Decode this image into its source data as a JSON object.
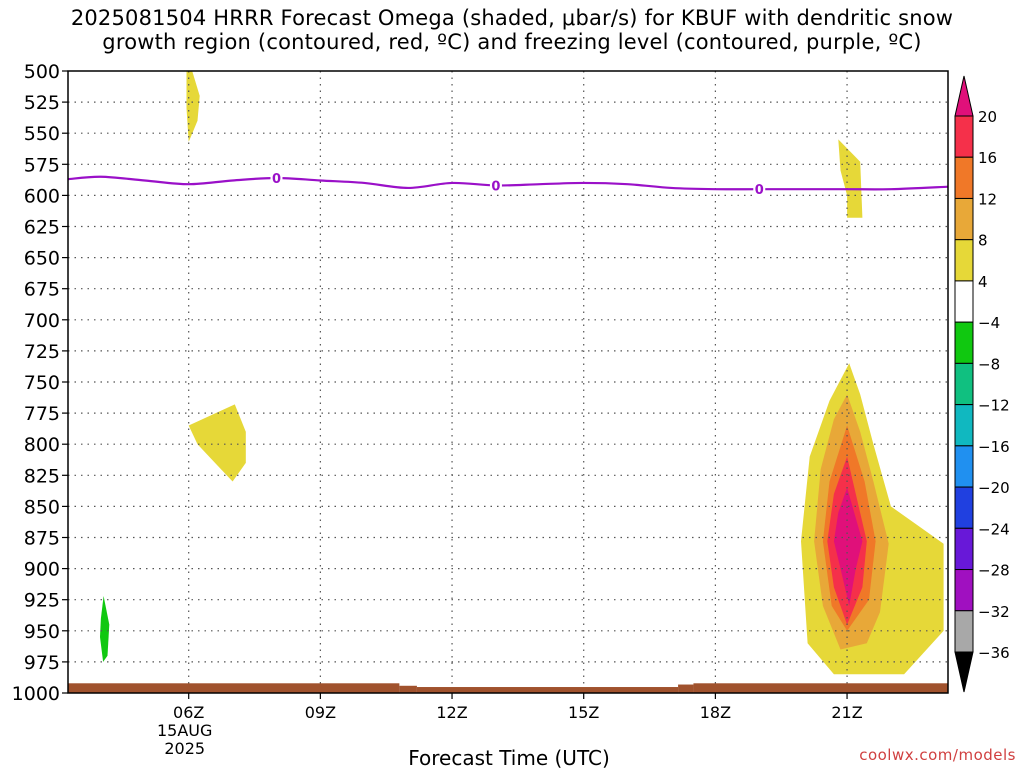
{
  "chart_data": {
    "type": "heatmap",
    "title_lines": [
      "2025081504 HRRR Forecast Omega (shaded, μbar/s) for KBUF with dendritic snow",
      "growth region (contoured, red, ºC) and freezing level (contoured, purple, ºC)"
    ],
    "xlabel": "Forecast Time (UTC)",
    "ylabel": "",
    "y_axis": {
      "reversed": true,
      "range": [
        500,
        1000
      ],
      "ticks": [
        500,
        525,
        550,
        575,
        600,
        625,
        650,
        675,
        700,
        725,
        750,
        775,
        800,
        825,
        850,
        875,
        900,
        925,
        950,
        975,
        1000
      ]
    },
    "x_axis": {
      "range_hours": [
        3.25,
        23.3
      ],
      "ticks": [
        {
          "hour": 6,
          "label": "06Z",
          "sub1": "15AUG",
          "sub2": "2025"
        },
        {
          "hour": 9,
          "label": "09Z",
          "sub1": "",
          "sub2": ""
        },
        {
          "hour": 12,
          "label": "12Z",
          "sub1": "",
          "sub2": ""
        },
        {
          "hour": 15,
          "label": "15Z",
          "sub1": "",
          "sub2": ""
        },
        {
          "hour": 18,
          "label": "18Z",
          "sub1": "",
          "sub2": ""
        },
        {
          "hour": 21,
          "label": "21Z",
          "sub1": "",
          "sub2": ""
        }
      ]
    },
    "grid": true,
    "colorbar": {
      "position": "right",
      "bands": [
        {
          "lo": 20,
          "hi": null,
          "color": "#e0107a"
        },
        {
          "lo": 16,
          "hi": 20,
          "color": "#f5304a"
        },
        {
          "lo": 12,
          "hi": 16,
          "color": "#f07828"
        },
        {
          "lo": 8,
          "hi": 12,
          "color": "#e8a838"
        },
        {
          "lo": 4,
          "hi": 8,
          "color": "#e6d838"
        },
        {
          "lo": -4,
          "hi": 4,
          "color": "#ffffff"
        },
        {
          "lo": -8,
          "hi": -4,
          "color": "#10c810"
        },
        {
          "lo": -12,
          "hi": -8,
          "color": "#10c080"
        },
        {
          "lo": -16,
          "hi": -12,
          "color": "#10b8c0"
        },
        {
          "lo": -20,
          "hi": -16,
          "color": "#2090f0"
        },
        {
          "lo": -24,
          "hi": -20,
          "color": "#2040e0"
        },
        {
          "lo": -28,
          "hi": -24,
          "color": "#6818d8"
        },
        {
          "lo": -32,
          "hi": -28,
          "color": "#a010c0"
        },
        {
          "lo": -36,
          "hi": -32,
          "color": "#a8a8a8"
        },
        {
          "lo": null,
          "hi": -36,
          "color": "#000000"
        }
      ],
      "labels": [
        "20",
        "16",
        "12",
        "8",
        "4",
        "−4",
        "−8",
        "−12",
        "−16",
        "−20",
        "−24",
        "−28",
        "−32",
        "−36"
      ]
    },
    "shaded_regions": [
      {
        "name": "upper-yellow-blob",
        "color": "#e6d838",
        "points": [
          [
            5.95,
            500
          ],
          [
            6.08,
            500
          ],
          [
            6.25,
            520
          ],
          [
            6.2,
            540
          ],
          [
            6.0,
            557
          ],
          [
            5.95,
            530
          ]
        ]
      },
      {
        "name": "mid-yellow-blob",
        "color": "#e6d838",
        "points": [
          [
            6.0,
            785
          ],
          [
            7.05,
            768
          ],
          [
            7.3,
            790
          ],
          [
            7.3,
            815
          ],
          [
            7.0,
            830
          ],
          [
            6.6,
            815
          ],
          [
            6.2,
            800
          ]
        ]
      },
      {
        "name": "green-blob",
        "color": "#10c810",
        "points": [
          [
            4.0,
            940
          ],
          [
            4.06,
            922
          ],
          [
            4.19,
            945
          ],
          [
            4.15,
            970
          ],
          [
            4.05,
            975
          ],
          [
            3.98,
            955
          ]
        ]
      },
      {
        "name": "right-top-yellow",
        "color": "#e6d838",
        "points": [
          [
            20.8,
            555
          ],
          [
            21.3,
            573
          ],
          [
            21.35,
            618
          ],
          [
            21.0,
            618
          ],
          [
            21.0,
            600
          ],
          [
            20.85,
            580
          ]
        ]
      },
      {
        "name": "storm-4-8",
        "color": "#e6d838",
        "points": [
          [
            21.05,
            735
          ],
          [
            21.3,
            760
          ],
          [
            21.6,
            800
          ],
          [
            22.0,
            850
          ],
          [
            23.2,
            880
          ],
          [
            23.2,
            950
          ],
          [
            22.3,
            985
          ],
          [
            20.7,
            985
          ],
          [
            20.1,
            960
          ],
          [
            19.95,
            878
          ],
          [
            20.15,
            810
          ],
          [
            20.6,
            765
          ]
        ]
      },
      {
        "name": "storm-8-12",
        "color": "#e8a838",
        "points": [
          [
            21.0,
            760
          ],
          [
            21.3,
            790
          ],
          [
            21.6,
            830
          ],
          [
            21.95,
            880
          ],
          [
            21.75,
            935
          ],
          [
            21.45,
            960
          ],
          [
            20.85,
            965
          ],
          [
            20.45,
            930
          ],
          [
            20.25,
            878
          ],
          [
            20.4,
            820
          ],
          [
            20.7,
            780
          ]
        ]
      },
      {
        "name": "storm-12-16",
        "color": "#f07828",
        "points": [
          [
            21.0,
            785
          ],
          [
            21.4,
            830
          ],
          [
            21.65,
            878
          ],
          [
            21.5,
            925
          ],
          [
            21.0,
            950
          ],
          [
            20.65,
            930
          ],
          [
            20.45,
            878
          ],
          [
            20.6,
            830
          ]
        ]
      },
      {
        "name": "storm-16-20",
        "color": "#f5304a",
        "points": [
          [
            21.0,
            810
          ],
          [
            21.45,
            878
          ],
          [
            21.35,
            915
          ],
          [
            21.0,
            945
          ],
          [
            20.7,
            915
          ],
          [
            20.55,
            878
          ],
          [
            20.7,
            840
          ]
        ]
      },
      {
        "name": "storm-20plus",
        "color": "#e0107a",
        "points": [
          [
            21.0,
            835
          ],
          [
            21.35,
            878
          ],
          [
            21.2,
            900
          ],
          [
            21.05,
            930
          ],
          [
            20.85,
            900
          ],
          [
            20.7,
            878
          ],
          [
            20.8,
            855
          ]
        ]
      }
    ],
    "freezing_level": {
      "color": "#9a10c8",
      "label": "0",
      "points": [
        [
          3.25,
          587
        ],
        [
          4.0,
          585
        ],
        [
          5.0,
          588
        ],
        [
          6.0,
          591
        ],
        [
          7.0,
          588
        ],
        [
          8.0,
          586
        ],
        [
          9.0,
          588
        ],
        [
          10.0,
          590
        ],
        [
          11.0,
          594
        ],
        [
          12.0,
          590
        ],
        [
          13.0,
          592
        ],
        [
          14.0,
          591
        ],
        [
          15.0,
          590
        ],
        [
          16.0,
          591
        ],
        [
          17.0,
          594
        ],
        [
          18.0,
          595
        ],
        [
          19.0,
          595
        ],
        [
          20.0,
          595
        ],
        [
          21.0,
          595
        ],
        [
          22.0,
          595
        ],
        [
          23.3,
          593
        ]
      ],
      "label_hours": [
        8.0,
        13.0,
        19.0
      ]
    },
    "surface_bar": {
      "color": "#a0522d",
      "segments": [
        [
          3.25,
          10.8,
          993
        ],
        [
          10.8,
          11.2,
          995
        ],
        [
          11.2,
          17.15,
          996
        ],
        [
          17.15,
          17.5,
          994
        ],
        [
          17.5,
          23.3,
          993
        ]
      ]
    }
  },
  "credit": "coolwx.com/models"
}
